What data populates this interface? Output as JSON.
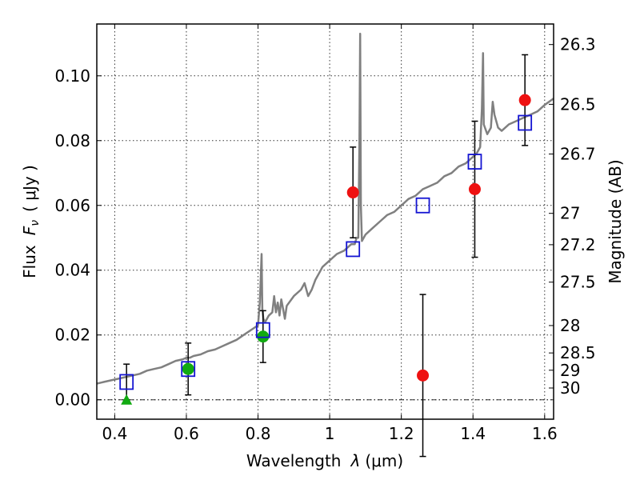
{
  "chart_data": {
    "type": "scatter",
    "title": "",
    "xlabel_main": "Wavelength",
    "xlabel_symbol": "λ",
    "xlabel_unit": "(μm)",
    "ylabel_main": "Flux",
    "ylabel_symbol": "F",
    "ylabel_sub": "ν",
    "ylabel_unit": "( μJy )",
    "y2label": "Magnitude (AB)",
    "xlim": [
      0.35,
      1.625
    ],
    "ylim": [
      -0.006,
      0.116
    ],
    "grid": true,
    "x_ticks": [
      {
        "value": 0.4,
        "label": "0.4"
      },
      {
        "value": 0.6,
        "label": "0.6"
      },
      {
        "value": 0.8,
        "label": "0.8"
      },
      {
        "value": 1.0,
        "label": "1"
      },
      {
        "value": 1.2,
        "label": "1.2"
      },
      {
        "value": 1.4,
        "label": "1.4"
      },
      {
        "value": 1.6,
        "label": "1.6"
      }
    ],
    "y_ticks": [
      {
        "value": 0.0,
        "label": "0.00"
      },
      {
        "value": 0.02,
        "label": "0.02"
      },
      {
        "value": 0.04,
        "label": "0.04"
      },
      {
        "value": 0.06,
        "label": "0.06"
      },
      {
        "value": 0.08,
        "label": "0.08"
      },
      {
        "value": 0.1,
        "label": "0.10"
      }
    ],
    "y2_ticks": [
      {
        "value": 26.3,
        "label": "26.3"
      },
      {
        "value": 26.5,
        "label": "26.5"
      },
      {
        "value": 26.7,
        "label": "26.7"
      },
      {
        "value": 27.0,
        "label": "27"
      },
      {
        "value": 27.2,
        "label": "27.2"
      },
      {
        "value": 27.5,
        "label": "27.5"
      },
      {
        "value": 28.0,
        "label": "28"
      },
      {
        "value": 28.5,
        "label": "28.5"
      },
      {
        "value": 29.0,
        "label": "29"
      },
      {
        "value": 30.0,
        "label": "30"
      }
    ],
    "zero_line": 0.0,
    "spectrum": {
      "color": "#808080",
      "x": [
        0.35,
        0.37,
        0.39,
        0.41,
        0.43,
        0.45,
        0.47,
        0.49,
        0.51,
        0.53,
        0.55,
        0.57,
        0.59,
        0.6,
        0.61,
        0.62,
        0.64,
        0.66,
        0.68,
        0.7,
        0.72,
        0.74,
        0.76,
        0.78,
        0.8,
        0.805,
        0.81,
        0.812,
        0.815,
        0.82,
        0.83,
        0.84,
        0.845,
        0.85,
        0.855,
        0.86,
        0.865,
        0.87,
        0.875,
        0.88,
        0.9,
        0.92,
        0.93,
        0.94,
        0.95,
        0.96,
        0.97,
        0.98,
        1.0,
        1.02,
        1.04,
        1.06,
        1.07,
        1.075,
        1.08,
        1.083,
        1.085,
        1.087,
        1.09,
        1.1,
        1.12,
        1.14,
        1.16,
        1.18,
        1.2,
        1.22,
        1.24,
        1.26,
        1.28,
        1.3,
        1.32,
        1.34,
        1.36,
        1.38,
        1.4,
        1.41,
        1.42,
        1.425,
        1.428,
        1.43,
        1.44,
        1.45,
        1.455,
        1.46,
        1.47,
        1.48,
        1.5,
        1.52,
        1.54,
        1.56,
        1.58,
        1.6,
        1.625
      ],
      "y": [
        0.005,
        0.0055,
        0.006,
        0.0065,
        0.007,
        0.0075,
        0.008,
        0.009,
        0.0095,
        0.01,
        0.011,
        0.012,
        0.0125,
        0.013,
        0.013,
        0.0135,
        0.014,
        0.015,
        0.0155,
        0.0165,
        0.0175,
        0.0185,
        0.02,
        0.0215,
        0.023,
        0.03,
        0.045,
        0.028,
        0.025,
        0.024,
        0.026,
        0.027,
        0.032,
        0.027,
        0.03,
        0.026,
        0.031,
        0.028,
        0.025,
        0.029,
        0.032,
        0.034,
        0.036,
        0.032,
        0.034,
        0.037,
        0.039,
        0.041,
        0.043,
        0.045,
        0.046,
        0.048,
        0.048,
        0.05,
        0.05,
        0.08,
        0.113,
        0.06,
        0.049,
        0.051,
        0.053,
        0.055,
        0.057,
        0.058,
        0.06,
        0.062,
        0.063,
        0.065,
        0.066,
        0.067,
        0.069,
        0.07,
        0.072,
        0.073,
        0.075,
        0.076,
        0.078,
        0.09,
        0.107,
        0.085,
        0.082,
        0.084,
        0.092,
        0.088,
        0.084,
        0.083,
        0.085,
        0.086,
        0.087,
        0.088,
        0.089,
        0.091,
        0.093
      ]
    },
    "series": [
      {
        "marker": "square",
        "color": "#1414d2",
        "x": [
          0.433,
          0.605,
          0.814,
          1.065,
          1.26,
          1.405,
          1.545
        ],
        "y": [
          0.0055,
          0.0095,
          0.0215,
          0.0465,
          0.06,
          0.0735,
          0.0855
        ]
      },
      {
        "marker": "circle",
        "color": "#ee1111",
        "x": [
          1.065,
          1.26,
          1.405,
          1.545
        ],
        "y": [
          0.064,
          0.0075,
          0.065,
          0.0925
        ],
        "yerr": [
          0.014,
          0.025,
          0.021,
          0.014
        ]
      },
      {
        "marker": "circle",
        "color": "#11aa11",
        "x": [
          0.605,
          0.814
        ],
        "y": [
          0.0095,
          0.0195
        ],
        "yerr": [
          0.008,
          0.008
        ]
      },
      {
        "marker": "triangle",
        "color": "#11aa11",
        "x": [
          0.433
        ],
        "y": [
          0.0
        ],
        "yerr_low": [
          0
        ],
        "yerr_high": [
          0.011
        ]
      }
    ]
  }
}
